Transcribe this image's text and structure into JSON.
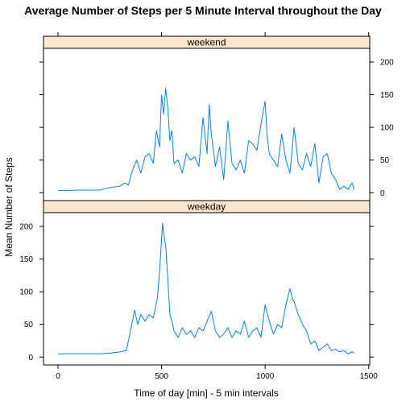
{
  "chart_data": {
    "type": "line",
    "title": "Average Number of Steps per 5 Minute Interval throughout the Day",
    "xlabel": "Time of day [min] - 5 min intervals",
    "ylabel": "Mean Number of Steps",
    "xlim": [
      -70,
      1505
    ],
    "ylim": [
      -12,
      221
    ],
    "x_ticks": [
      0,
      500,
      1000,
      1500
    ],
    "x_tick_labels": [
      "0",
      "500",
      "1000",
      "1500"
    ],
    "y_ticks": [
      0,
      50,
      100,
      150,
      200
    ],
    "y_tick_labels": [
      "0",
      "50",
      "100",
      "150",
      "200"
    ],
    "grid": false,
    "colors": {
      "line": "#0080ff",
      "strip": "#ffe5cc"
    },
    "panels": [
      {
        "name": "weekend",
        "y_axis_side": "right",
        "x": [
          0,
          100,
          200,
          250,
          300,
          320,
          340,
          360,
          380,
          400,
          420,
          440,
          460,
          475,
          490,
          500,
          510,
          520,
          530,
          540,
          550,
          560,
          580,
          600,
          620,
          640,
          660,
          680,
          700,
          720,
          730,
          740,
          760,
          780,
          800,
          820,
          840,
          860,
          880,
          900,
          920,
          940,
          960,
          980,
          1000,
          1010,
          1020,
          1040,
          1060,
          1080,
          1100,
          1120,
          1140,
          1160,
          1180,
          1200,
          1220,
          1240,
          1260,
          1280,
          1300,
          1320,
          1340,
          1360,
          1380,
          1400,
          1420,
          1430
        ],
        "y": [
          3,
          4,
          4,
          8,
          10,
          15,
          12,
          35,
          50,
          30,
          55,
          60,
          45,
          95,
          70,
          150,
          120,
          160,
          130,
          80,
          95,
          45,
          50,
          30,
          60,
          50,
          55,
          40,
          115,
          60,
          135,
          90,
          40,
          70,
          20,
          110,
          45,
          35,
          50,
          30,
          80,
          75,
          65,
          105,
          140,
          85,
          60,
          50,
          40,
          90,
          50,
          30,
          100,
          45,
          35,
          60,
          40,
          75,
          15,
          55,
          60,
          30,
          20,
          5,
          10,
          5,
          15,
          5
        ]
      },
      {
        "name": "weekday",
        "y_axis_side": "left",
        "x": [
          0,
          100,
          200,
          250,
          300,
          330,
          350,
          370,
          385,
          400,
          420,
          440,
          460,
          480,
          490,
          500,
          505,
          510,
          520,
          530,
          540,
          550,
          560,
          580,
          600,
          620,
          640,
          660,
          680,
          700,
          720,
          740,
          760,
          780,
          800,
          820,
          840,
          860,
          880,
          900,
          920,
          940,
          960,
          980,
          1000,
          1020,
          1040,
          1060,
          1080,
          1100,
          1120,
          1130,
          1140,
          1160,
          1180,
          1200,
          1220,
          1240,
          1260,
          1280,
          1300,
          1320,
          1340,
          1360,
          1380,
          1400,
          1420,
          1430
        ],
        "y": [
          5,
          5,
          5,
          6,
          8,
          10,
          40,
          72,
          50,
          65,
          55,
          65,
          60,
          90,
          130,
          180,
          205,
          190,
          170,
          120,
          65,
          55,
          40,
          30,
          45,
          35,
          40,
          30,
          45,
          40,
          55,
          70,
          40,
          30,
          35,
          45,
          30,
          40,
          35,
          55,
          30,
          40,
          45,
          30,
          80,
          55,
          35,
          50,
          45,
          80,
          105,
          90,
          85,
          65,
          50,
          40,
          20,
          25,
          10,
          15,
          20,
          10,
          12,
          8,
          10,
          5,
          8,
          6
        ]
      }
    ]
  }
}
